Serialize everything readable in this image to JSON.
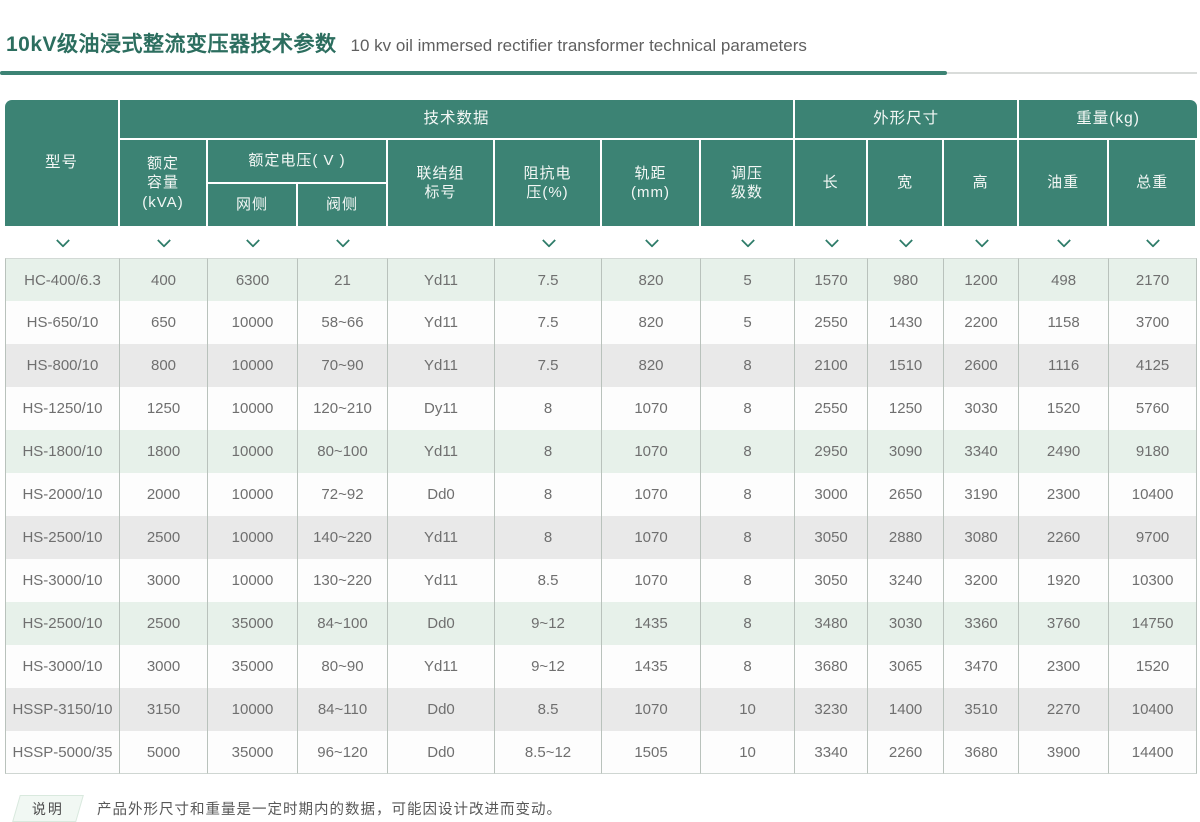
{
  "page": {
    "title_cn": "10kV级油浸式整流变压器技术参数",
    "title_en": "10 kv oil immersed rectifier transformer technical parameters"
  },
  "table": {
    "groups": {
      "tech": "技术数据",
      "dims": "外形尺寸",
      "weight": "重量(kg)"
    },
    "columns": {
      "model": "型号",
      "capacity": "额定\n容量\n(kVA)",
      "voltage_group": "额定电压( V )",
      "grid_side": "网侧",
      "valve_side": "阀侧",
      "vector": "联结组\n标号",
      "impedance": "阻抗电\n压(%)",
      "gauge": "轨距\n(mm)",
      "taps": "调压\n级数",
      "length": "长",
      "width": "宽",
      "height": "高",
      "oil_weight": "油重",
      "total_weight": "总重"
    },
    "filter_icon": "chevron-down",
    "rows": [
      [
        "HC-400/6.3",
        "400",
        "6300",
        "21",
        "Yd11",
        "7.5",
        "820",
        "5",
        "1570",
        "980",
        "1200",
        "498",
        "2170"
      ],
      [
        "HS-650/10",
        "650",
        "10000",
        "58~66",
        "Yd11",
        "7.5",
        "820",
        "5",
        "2550",
        "1430",
        "2200",
        "1158",
        "3700"
      ],
      [
        "HS-800/10",
        "800",
        "10000",
        "70~90",
        "Yd11",
        "7.5",
        "820",
        "8",
        "2100",
        "1510",
        "2600",
        "1116",
        "4125"
      ],
      [
        "HS-1250/10",
        "1250",
        "10000",
        "120~210",
        "Dy11",
        "8",
        "1070",
        "8",
        "2550",
        "1250",
        "3030",
        "1520",
        "5760"
      ],
      [
        "HS-1800/10",
        "1800",
        "10000",
        "80~100",
        "Yd11",
        "8",
        "1070",
        "8",
        "2950",
        "3090",
        "3340",
        "2490",
        "9180"
      ],
      [
        "HS-2000/10",
        "2000",
        "10000",
        "72~92",
        "Dd0",
        "8",
        "1070",
        "8",
        "3000",
        "2650",
        "3190",
        "2300",
        "10400"
      ],
      [
        "HS-2500/10",
        "2500",
        "10000",
        "140~220",
        "Yd11",
        "8",
        "1070",
        "8",
        "3050",
        "2880",
        "3080",
        "2260",
        "9700"
      ],
      [
        "HS-3000/10",
        "3000",
        "10000",
        "130~220",
        "Yd11",
        "8.5",
        "1070",
        "8",
        "3050",
        "3240",
        "3200",
        "1920",
        "10300"
      ],
      [
        "HS-2500/10",
        "2500",
        "35000",
        "84~100",
        "Dd0",
        "9~12",
        "1435",
        "8",
        "3480",
        "3030",
        "3360",
        "3760",
        "14750"
      ],
      [
        "HS-3000/10",
        "3000",
        "35000",
        "80~90",
        "Yd11",
        "9~12",
        "1435",
        "8",
        "3680",
        "3065",
        "3470",
        "2300",
        "1520"
      ],
      [
        "HSSP-3150/10",
        "3150",
        "10000",
        "84~110",
        "Dd0",
        "8.5",
        "1070",
        "10",
        "3230",
        "1400",
        "3510",
        "2270",
        "10400"
      ],
      [
        "HSSP-5000/35",
        "5000",
        "35000",
        "96~120",
        "Dd0",
        "8.5~12",
        "1505",
        "10",
        "3340",
        "2260",
        "3680",
        "3900",
        "14400"
      ]
    ]
  },
  "note": {
    "label": "说明",
    "text": "产品外形尺寸和重量是一定时期内的数据，可能因设计改进而变动。"
  },
  "colors": {
    "header_teal": "#3c8374",
    "title_dark_teal": "#2c6e5f",
    "row_green": "#e7f1ea",
    "row_gray": "#e9e9e9",
    "chevron_teal": "#2e7c69"
  }
}
